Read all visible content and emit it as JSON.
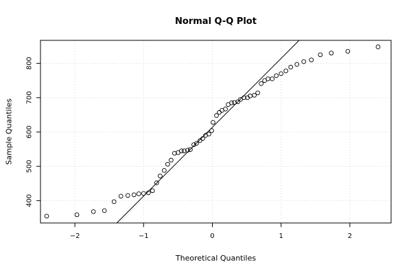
{
  "chart_data": {
    "type": "scatter",
    "title": "Normal Q-Q Plot",
    "xlabel": "Theoretical Quantiles",
    "ylabel": "Sample Quantiles",
    "xlim": [
      -2.5,
      2.6
    ],
    "ylim": [
      335,
      867
    ],
    "xticks": [
      -2,
      -1,
      0,
      1,
      2
    ],
    "xtick_labels": [
      "−2",
      "−1",
      "0",
      "1",
      "2"
    ],
    "yticks": [
      400,
      500,
      600,
      700,
      800
    ],
    "ytick_labels": [
      "400",
      "500",
      "600",
      "700",
      "800"
    ],
    "grid": true,
    "reference_line": {
      "slope": 200.6,
      "intercept": 613.8
    },
    "points": [
      [
        -2.41,
        355
      ],
      [
        -1.97,
        359
      ],
      [
        -1.73,
        368
      ],
      [
        -1.57,
        371
      ],
      [
        -1.43,
        397
      ],
      [
        -1.33,
        413
      ],
      [
        -1.23,
        415
      ],
      [
        -1.14,
        417
      ],
      [
        -1.07,
        420
      ],
      [
        -1.0,
        421
      ],
      [
        -0.93,
        423
      ],
      [
        -0.87,
        429
      ],
      [
        -0.81,
        452
      ],
      [
        -0.76,
        472
      ],
      [
        -0.7,
        488
      ],
      [
        -0.65,
        506
      ],
      [
        -0.6,
        518
      ],
      [
        -0.55,
        538
      ],
      [
        -0.5,
        540
      ],
      [
        -0.45,
        545
      ],
      [
        -0.41,
        545
      ],
      [
        -0.36,
        547
      ],
      [
        -0.32,
        549
      ],
      [
        -0.27,
        563
      ],
      [
        -0.23,
        567
      ],
      [
        -0.18,
        575
      ],
      [
        -0.14,
        581
      ],
      [
        -0.1,
        590
      ],
      [
        -0.05,
        594
      ],
      [
        -0.01,
        604
      ],
      [
        0.01,
        628
      ],
      [
        0.06,
        648
      ],
      [
        0.1,
        657
      ],
      [
        0.14,
        663
      ],
      [
        0.19,
        667
      ],
      [
        0.23,
        680
      ],
      [
        0.28,
        685
      ],
      [
        0.32,
        686
      ],
      [
        0.37,
        688
      ],
      [
        0.41,
        695
      ],
      [
        0.46,
        700
      ],
      [
        0.51,
        700
      ],
      [
        0.55,
        705
      ],
      [
        0.61,
        707
      ],
      [
        0.66,
        714
      ],
      [
        0.71,
        741
      ],
      [
        0.76,
        750
      ],
      [
        0.81,
        755
      ],
      [
        0.87,
        755
      ],
      [
        0.93,
        764
      ],
      [
        1.0,
        770
      ],
      [
        1.07,
        778
      ],
      [
        1.14,
        789
      ],
      [
        1.23,
        797
      ],
      [
        1.33,
        805
      ],
      [
        1.44,
        810
      ],
      [
        1.57,
        825
      ],
      [
        1.73,
        830
      ],
      [
        1.97,
        835
      ],
      [
        2.41,
        848
      ]
    ]
  }
}
